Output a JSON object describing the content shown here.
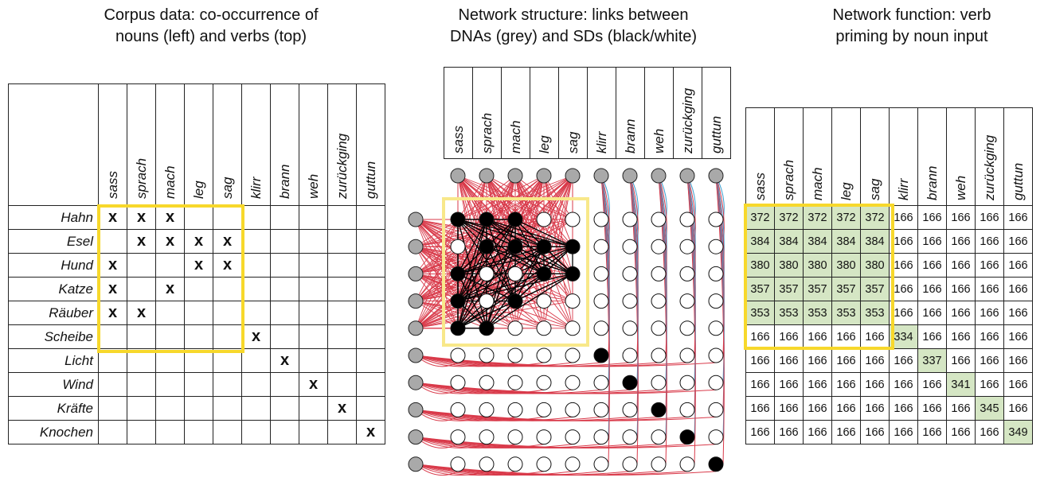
{
  "panels": {
    "corpus": {
      "title_line1": "Corpus data: co-occurrence of",
      "title_line2": "nouns (left) and verbs (top)"
    },
    "network": {
      "title_line1": "Network structure: links between",
      "title_line2": "DNAs (grey) and  SDs (black/white)"
    },
    "function": {
      "title_line1": "Network function: verb",
      "title_line2": "priming by noun input"
    }
  },
  "verbs": [
    "sass",
    "sprach",
    "mach",
    "leg",
    "sag",
    "klirr",
    "brann",
    "weh",
    "zurückging",
    "guttun"
  ],
  "nouns": [
    "Hahn",
    "Esel",
    "Hund",
    "Katze",
    "Räuber",
    "Scheibe",
    "Licht",
    "Wind",
    "Kräfte",
    "Knochen"
  ],
  "cooccurrence_marker": "x",
  "cooccurrence": [
    [
      1,
      1,
      1,
      0,
      0,
      0,
      0,
      0,
      0,
      0
    ],
    [
      0,
      1,
      1,
      1,
      1,
      0,
      0,
      0,
      0,
      0
    ],
    [
      1,
      0,
      0,
      1,
      1,
      0,
      0,
      0,
      0,
      0
    ],
    [
      1,
      0,
      1,
      0,
      0,
      0,
      0,
      0,
      0,
      0
    ],
    [
      1,
      1,
      0,
      0,
      0,
      0,
      0,
      0,
      0,
      0
    ],
    [
      0,
      0,
      0,
      0,
      0,
      1,
      0,
      0,
      0,
      0
    ],
    [
      0,
      0,
      0,
      0,
      0,
      0,
      1,
      0,
      0,
      0
    ],
    [
      0,
      0,
      0,
      0,
      0,
      0,
      0,
      1,
      0,
      0
    ],
    [
      0,
      0,
      0,
      0,
      0,
      0,
      0,
      0,
      1,
      0
    ],
    [
      0,
      0,
      0,
      0,
      0,
      0,
      0,
      0,
      0,
      1
    ]
  ],
  "network_sd_active": [
    [
      1,
      1,
      1,
      0,
      0,
      0,
      0,
      0,
      0,
      0
    ],
    [
      0,
      1,
      1,
      1,
      1,
      0,
      0,
      0,
      0,
      0
    ],
    [
      1,
      0,
      0,
      1,
      1,
      0,
      0,
      0,
      0,
      0
    ],
    [
      1,
      0,
      1,
      0,
      0,
      0,
      0,
      0,
      0,
      0
    ],
    [
      1,
      1,
      0,
      0,
      0,
      0,
      0,
      0,
      0,
      0
    ],
    [
      0,
      0,
      0,
      0,
      0,
      1,
      0,
      0,
      0,
      0
    ],
    [
      0,
      0,
      0,
      0,
      0,
      0,
      1,
      0,
      0,
      0
    ],
    [
      0,
      0,
      0,
      0,
      0,
      0,
      0,
      1,
      0,
      0
    ],
    [
      0,
      0,
      0,
      0,
      0,
      0,
      0,
      0,
      1,
      0
    ],
    [
      0,
      0,
      0,
      0,
      0,
      0,
      0,
      0,
      0,
      1
    ]
  ],
  "priming": [
    [
      372,
      372,
      372,
      372,
      372,
      166,
      166,
      166,
      166,
      166
    ],
    [
      384,
      384,
      384,
      384,
      384,
      166,
      166,
      166,
      166,
      166
    ],
    [
      380,
      380,
      380,
      380,
      380,
      166,
      166,
      166,
      166,
      166
    ],
    [
      357,
      357,
      357,
      357,
      357,
      166,
      166,
      166,
      166,
      166
    ],
    [
      353,
      353,
      353,
      353,
      353,
      166,
      166,
      166,
      166,
      166
    ],
    [
      166,
      166,
      166,
      166,
      166,
      334,
      166,
      166,
      166,
      166
    ],
    [
      166,
      166,
      166,
      166,
      166,
      166,
      337,
      166,
      166,
      166
    ],
    [
      166,
      166,
      166,
      166,
      166,
      166,
      166,
      341,
      166,
      166
    ],
    [
      166,
      166,
      166,
      166,
      166,
      166,
      166,
      166,
      345,
      166
    ],
    [
      166,
      166,
      166,
      166,
      166,
      166,
      166,
      166,
      166,
      349
    ]
  ],
  "colors": {
    "highlight": "#f7d82b",
    "highlight_soft": "#f8e88a",
    "primed_cell": "#d5e6c4",
    "dna_node": "#a9a9a9",
    "sd_active": "#000000",
    "sd_inactive": "#ffffff",
    "link_red": "#d93a4a",
    "link_blue": "#3a9fd0",
    "link_black": "#000000"
  }
}
